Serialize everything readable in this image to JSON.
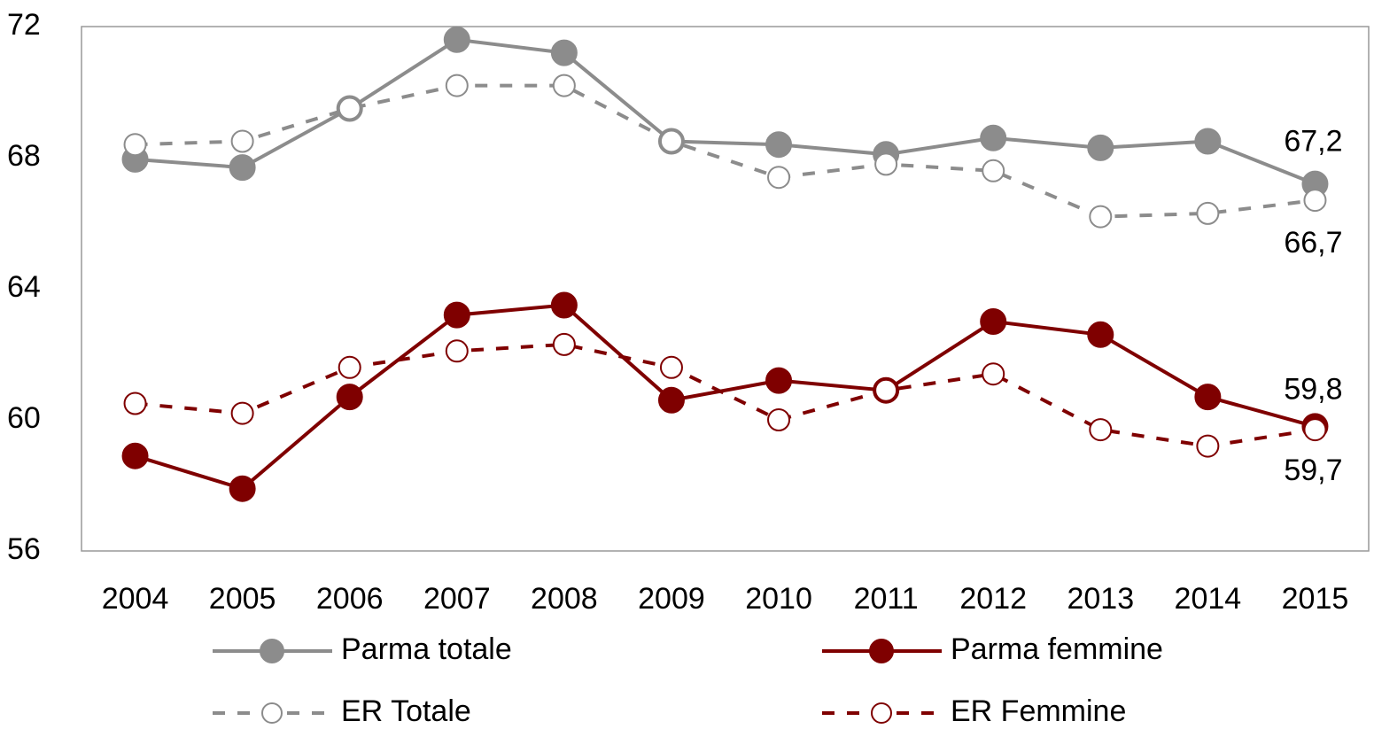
{
  "chart_data": {
    "type": "line",
    "categories": [
      "2004",
      "2005",
      "2006",
      "2007",
      "2008",
      "2009",
      "2010",
      "2011",
      "2012",
      "2013",
      "2014",
      "2015"
    ],
    "series": [
      {
        "name": "Parma totale",
        "color": "#8c8c8c",
        "dashed": false,
        "filled": true,
        "values": [
          67.95,
          67.7,
          69.5,
          71.6,
          71.2,
          68.5,
          68.4,
          68.1,
          68.6,
          68.3,
          68.5,
          67.2
        ],
        "value_labels": [
          null,
          null,
          null,
          null,
          null,
          null,
          null,
          null,
          null,
          null,
          null,
          "67,2"
        ]
      },
      {
        "name": "ER Totale",
        "color": "#8c8c8c",
        "dashed": true,
        "filled": false,
        "values": [
          68.4,
          68.5,
          69.5,
          70.2,
          70.2,
          68.5,
          67.4,
          67.8,
          67.6,
          66.2,
          66.3,
          66.7
        ],
        "value_labels": [
          null,
          null,
          null,
          null,
          null,
          null,
          null,
          null,
          null,
          null,
          null,
          "66,7"
        ]
      },
      {
        "name": "Parma femmine",
        "color": "#7f0000",
        "dashed": false,
        "filled": true,
        "values": [
          58.9,
          57.9,
          60.7,
          63.2,
          63.5,
          60.6,
          61.2,
          60.9,
          63.0,
          62.6,
          60.7,
          59.8
        ],
        "value_labels": [
          null,
          null,
          null,
          null,
          null,
          null,
          null,
          null,
          null,
          null,
          null,
          "59,8"
        ]
      },
      {
        "name": "ER Femmine",
        "color": "#7f0000",
        "dashed": true,
        "filled": false,
        "values": [
          60.5,
          60.2,
          61.6,
          62.1,
          62.3,
          61.6,
          60.0,
          60.9,
          61.4,
          59.7,
          59.2,
          59.7
        ],
        "value_labels": [
          null,
          null,
          null,
          null,
          null,
          null,
          null,
          null,
          null,
          null,
          null,
          "59,7"
        ]
      }
    ],
    "ylim": [
      56,
      72
    ],
    "yticks": [
      56,
      60,
      64,
      68,
      72
    ],
    "grid": false,
    "legend": "bottom"
  }
}
